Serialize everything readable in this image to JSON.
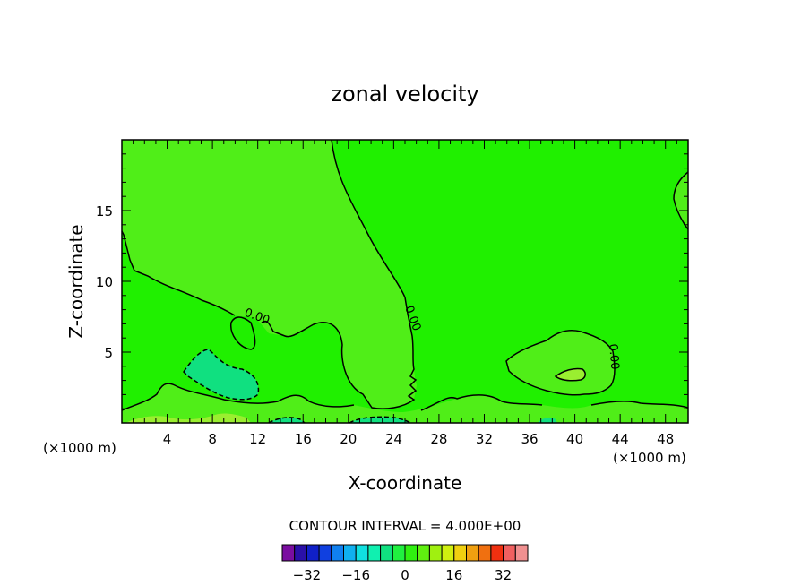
{
  "chart_data": {
    "type": "contour",
    "title": "zonal velocity",
    "xlabel": "X-coordinate",
    "ylabel": "Z-coordinate",
    "x_unit_left": "(×1000 m)",
    "x_unit_right": "(×1000 m)",
    "xlim": [
      0,
      50
    ],
    "ylim": [
      0,
      20
    ],
    "x_ticks": [
      4,
      8,
      12,
      16,
      20,
      24,
      28,
      32,
      36,
      40,
      44,
      48
    ],
    "y_ticks": [
      5,
      10,
      15
    ],
    "zero_contour_labels": [
      "0.00",
      "0.00",
      "0.00"
    ],
    "contour_interval_label": "CONTOUR INTERVAL =  4.000E+00",
    "colorbar": {
      "ticks": [
        -32,
        -16,
        0,
        16,
        32
      ],
      "tick_labels": [
        "−32",
        "−16",
        "0",
        "16",
        "32"
      ],
      "colors": [
        "#7a0da0",
        "#2a10a8",
        "#1020c8",
        "#1040e0",
        "#1080f0",
        "#10b0f0",
        "#10e0e0",
        "#10f0b0",
        "#10e080",
        "#20f040",
        "#30f010",
        "#60f010",
        "#a0f010",
        "#d0f010",
        "#f0d010",
        "#f0a010",
        "#f07010",
        "#f03010",
        "#f06060",
        "#f09090"
      ]
    },
    "background_value_range": "0 to 4",
    "regions": [
      {
        "name": "upper-left",
        "value_range": "4 to 8"
      },
      {
        "name": "lower-left",
        "value_range": "-4 to 0"
      },
      {
        "name": "right-center",
        "value_range": "4 to 8"
      },
      {
        "name": "surface-layer",
        "value_range": "4 to 12"
      }
    ]
  }
}
